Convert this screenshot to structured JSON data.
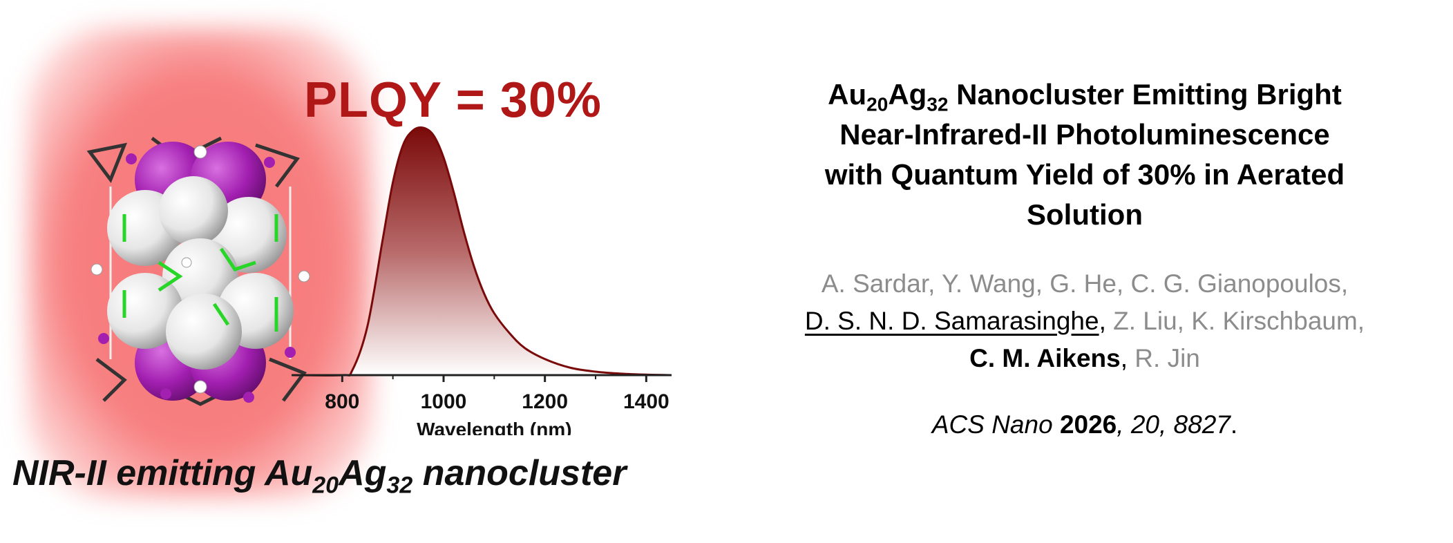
{
  "graphic": {
    "plqy_label": "PLQY = 30%",
    "caption": {
      "prefix": "NIR-II emitting Au",
      "sub1": "20",
      "mid": "Ag",
      "sub2": "32",
      "suffix": " nanocluster"
    },
    "colors": {
      "plqy": "#b01818",
      "curve": "#7a0a0a",
      "glow": "#f6787a",
      "ag_atom": "#a21fb0",
      "ligand": "#27d627"
    }
  },
  "chart_data": {
    "type": "area",
    "title": "",
    "xlabel": "Wavelength (nm)",
    "ylabel": "",
    "xlim": [
      700,
      1450
    ],
    "ylim": [
      0,
      1
    ],
    "xticks": [
      "800",
      "1000",
      "1200",
      "1400"
    ],
    "xtick_values": [
      800,
      1000,
      1200,
      1400
    ],
    "minor_ticks": [
      900,
      1100,
      1300
    ],
    "grid": false,
    "peak": 960,
    "x": [
      700,
      800,
      820,
      850,
      880,
      900,
      920,
      940,
      960,
      980,
      1000,
      1020,
      1040,
      1060,
      1080,
      1100,
      1130,
      1160,
      1200,
      1250,
      1300,
      1350,
      1400,
      1450
    ],
    "y": [
      0,
      0,
      0.02,
      0.2,
      0.55,
      0.78,
      0.93,
      0.99,
      1.0,
      0.97,
      0.88,
      0.74,
      0.58,
      0.44,
      0.33,
      0.25,
      0.17,
      0.11,
      0.065,
      0.03,
      0.014,
      0.006,
      0.002,
      0
    ]
  },
  "paper": {
    "title": {
      "l1a": "Au",
      "l1s1": "20",
      "l1b": "Ag",
      "l1s2": "32",
      "l1c": " Nanocluster Emitting Bright",
      "l2": "Near-Infrared-II Photoluminescence",
      "l3": "with Quantum Yield of 30% in Aerated",
      "l4": "Solution"
    },
    "authors": {
      "line1": "A. Sardar, Y. Wang, G. He, C. G. Gianopoulos,",
      "underlined": "D. S. N. D. Samarasinghe",
      "comma1": ",",
      "line2_rest": " Z. Liu, K. Kirschbaum,",
      "bold": "C. M. Aikens",
      "comma2": ",",
      "line3_rest": " R. Jin"
    },
    "citation": {
      "journal": "ACS Nano",
      "year": "2026",
      "sep": ",",
      "volume": " 20, 8827",
      "end": "."
    }
  }
}
